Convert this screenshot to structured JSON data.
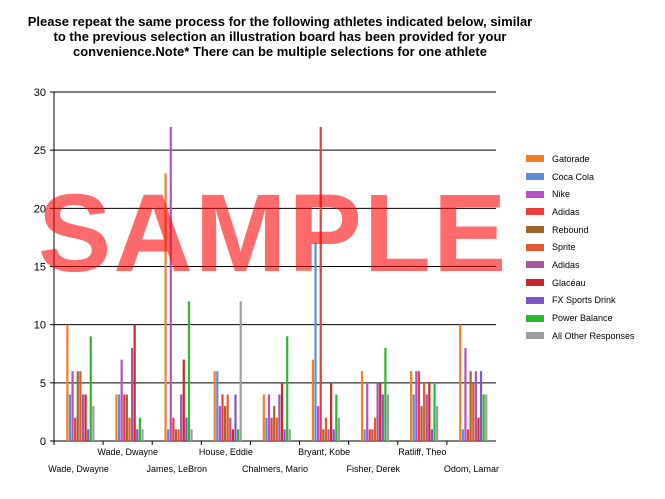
{
  "chart_data": {
    "type": "bar",
    "title": "Please repeat the same process for the following athletes indicated below, similar to the previous selection an illustration board has been provided for your convenience.Note* There can be multiple selections for one athlete",
    "xlabel": "",
    "ylabel": "",
    "ylim": [
      0,
      30
    ],
    "yticks": [
      0,
      5,
      10,
      15,
      20,
      25,
      30
    ],
    "grid": true,
    "legend_position": "right",
    "categories": [
      "Wade, Dwayne",
      "Wade, Dwayne",
      "James, LeBron",
      "House, Eddie",
      "Chalmers, Mario",
      "Bryant, Kobe",
      "Fisher, Derek",
      "Ratliff, Theo",
      "Odom, Lamar"
    ],
    "series": [
      {
        "name": "Gatorade",
        "color": "#F28020",
        "values": [
          10,
          4,
          23,
          6,
          4,
          7,
          6,
          6,
          10
        ]
      },
      {
        "name": "Coca Cola",
        "color": "#5B8DD9",
        "values": [
          4,
          4,
          1,
          6,
          2,
          17,
          1,
          4,
          1
        ]
      },
      {
        "name": "Nike",
        "color": "#B64FC8",
        "values": [
          6,
          7,
          27,
          3,
          4,
          3,
          5,
          6,
          8
        ]
      },
      {
        "name": "Adidas",
        "color": "#EC3B3B",
        "values": [
          2,
          4,
          2,
          4,
          2,
          27,
          1,
          6,
          1
        ]
      },
      {
        "name": "Rebound",
        "color": "#A0662E",
        "values": [
          6,
          4,
          1,
          3,
          3,
          1,
          1,
          3,
          6
        ]
      },
      {
        "name": "Sprite",
        "color": "#E8582E",
        "values": [
          6,
          2,
          1,
          4,
          2,
          2,
          2,
          5,
          5
        ]
      },
      {
        "name": "Adidas",
        "color": "#A8569E",
        "values": [
          4,
          8,
          4,
          2,
          4,
          1,
          5,
          4,
          6
        ]
      },
      {
        "name": "Glacéau",
        "color": "#C8282E",
        "values": [
          4,
          10,
          7,
          1,
          5,
          5,
          5,
          5,
          2
        ]
      },
      {
        "name": "FX Sports Drink",
        "color": "#7E57C7",
        "values": [
          1,
          1,
          2,
          4,
          1,
          1,
          4,
          1,
          6
        ]
      },
      {
        "name": "Power Balance",
        "color": "#2BB82B",
        "values": [
          9,
          2,
          12,
          1,
          9,
          4,
          8,
          5,
          4
        ]
      },
      {
        "name": "All Other Responses",
        "color": "#9E9E9E",
        "values": [
          3,
          1,
          1,
          12,
          1,
          2,
          4,
          3,
          4
        ]
      }
    ],
    "bar_overrides": {
      "Rebound_dark_green_in": [
        "Wade, Dwayne 2",
        "Chalmers, Mario",
        "Fisher, Derek",
        "Ratliff, Theo"
      ]
    },
    "watermark": "SAMPLE"
  }
}
